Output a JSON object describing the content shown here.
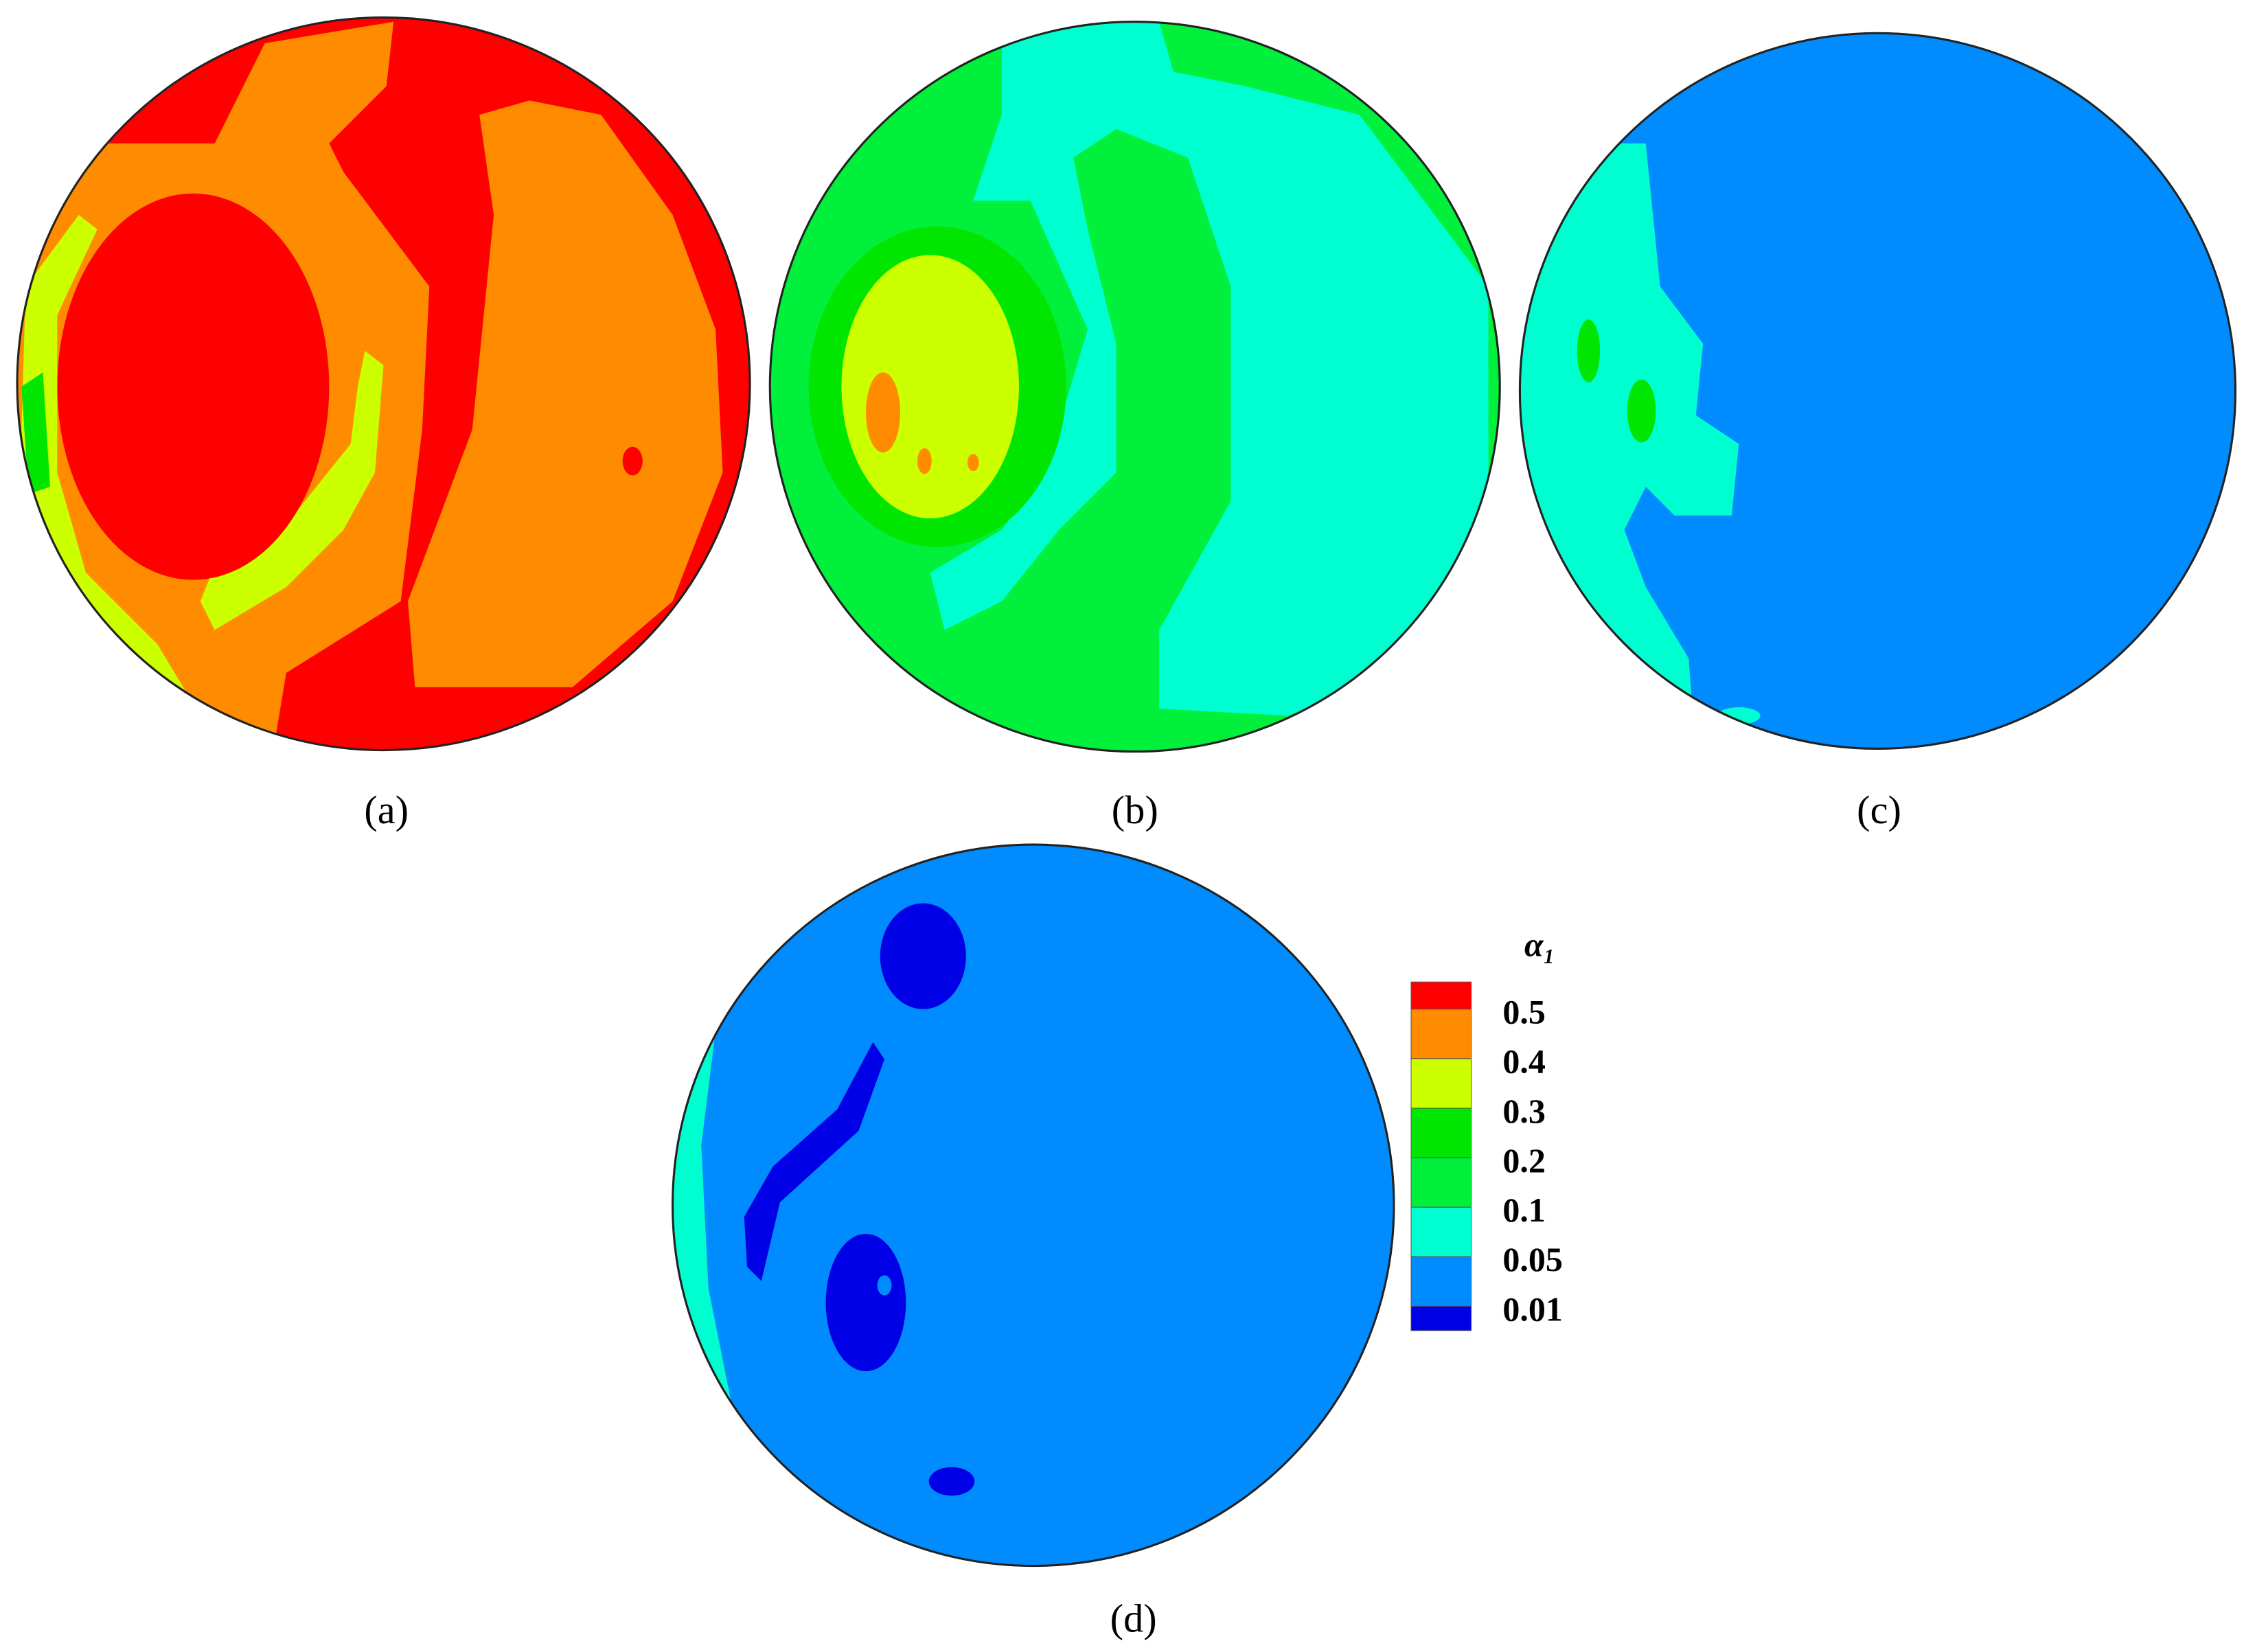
{
  "panels": [
    {
      "label": "(a)"
    },
    {
      "label": "(b)"
    },
    {
      "label": "(c)"
    },
    {
      "label": "(d)"
    }
  ],
  "legend": {
    "title": "α₁",
    "colors": [
      "#ff0000",
      "#ff8c00",
      "#ccff00",
      "#00e600",
      "#00f03c",
      "#00ffd0",
      "#008cff",
      "#0000e6"
    ],
    "levels": [
      "0.5",
      "0.4",
      "0.3",
      "0.2",
      "0.1",
      "0.05",
      "0.01"
    ]
  }
}
